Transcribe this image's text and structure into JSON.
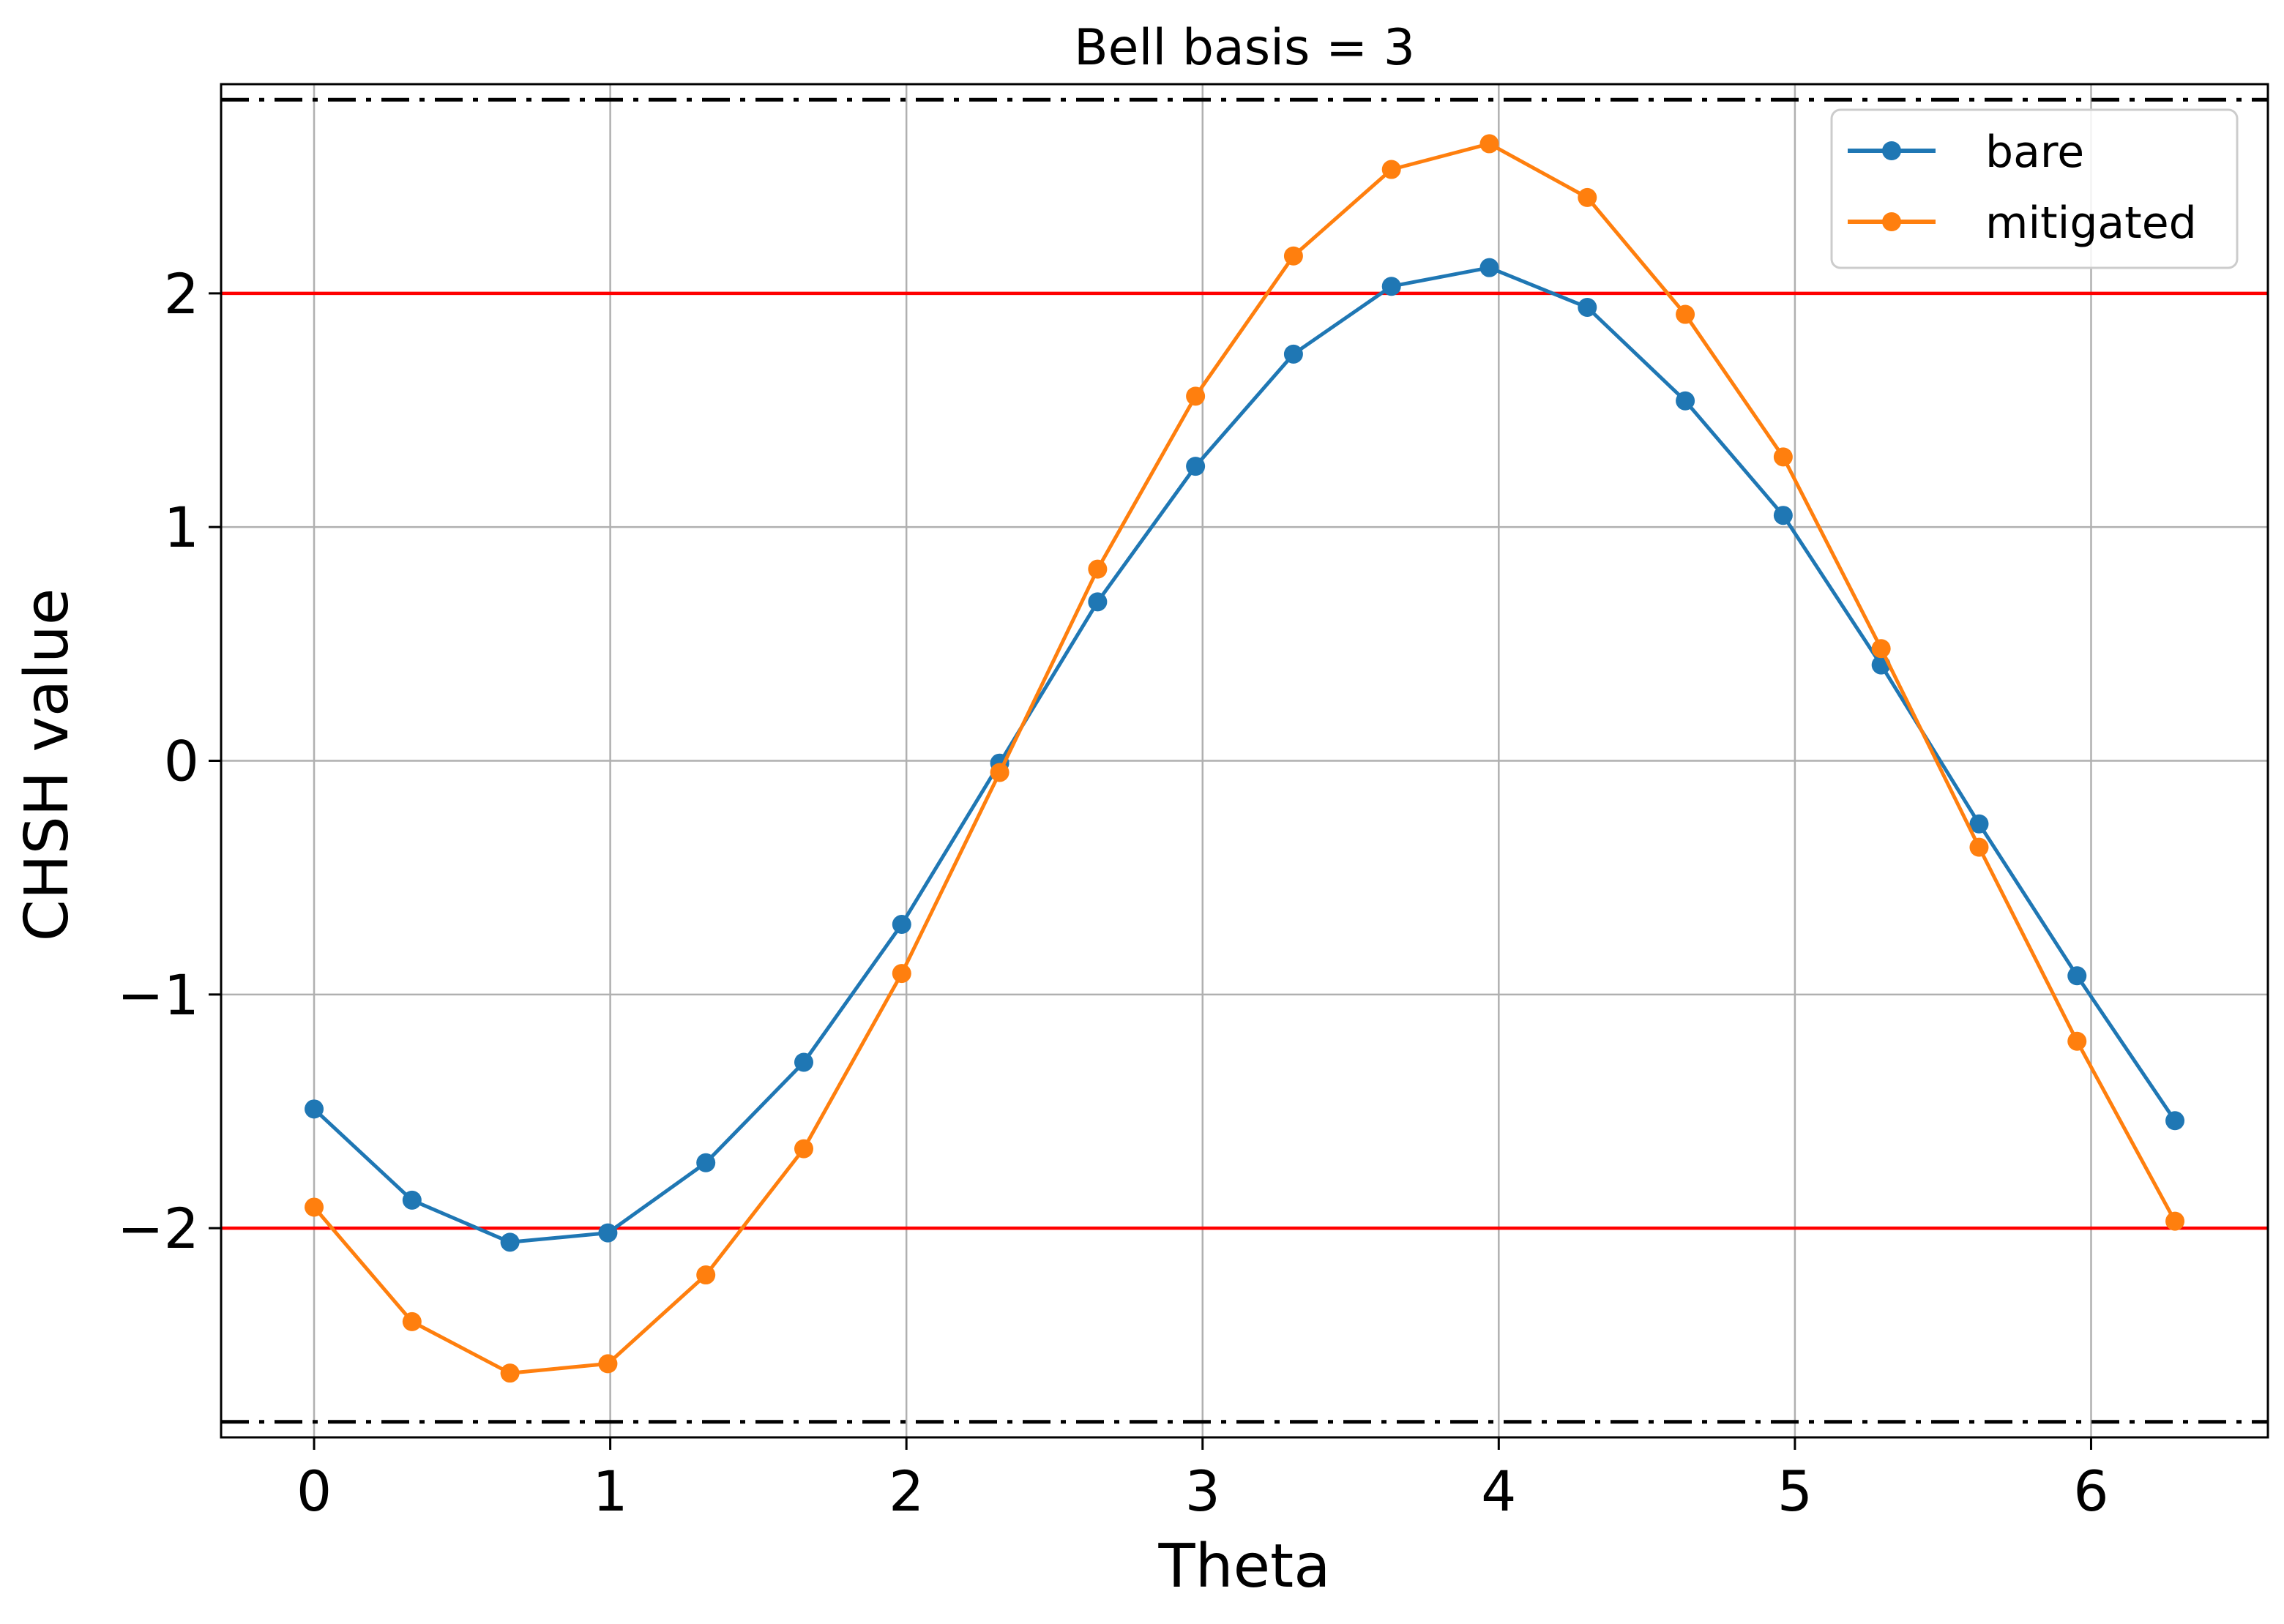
{
  "chart_data": {
    "type": "line",
    "title": "Bell basis = 3",
    "xlabel": "Theta",
    "ylabel": "CHSH value",
    "xlim": [
      -0.314,
      6.597
    ],
    "ylim": [
      -2.895,
      2.895
    ],
    "xticks": [
      0,
      1,
      2,
      3,
      4,
      5,
      6
    ],
    "yticks": [
      -2,
      -1,
      0,
      1,
      2
    ],
    "ytick_labels": [
      "−2",
      "−1",
      "0",
      "1",
      "2"
    ],
    "grid": true,
    "legend_position": "top-right",
    "x": [
      0,
      0.3307,
      0.6614,
      0.9921,
      1.3228,
      1.6535,
      1.9842,
      2.3149,
      2.6456,
      2.9762,
      3.3069,
      3.6376,
      3.9683,
      4.299,
      4.6297,
      4.9604,
      5.2911,
      5.6218,
      5.9525,
      6.2832
    ],
    "series": [
      {
        "name": "bare",
        "color": "#1f77b4",
        "values": [
          -1.49,
          -1.88,
          -2.06,
          -2.02,
          -1.72,
          -1.29,
          -0.7,
          -0.01,
          0.68,
          1.26,
          1.74,
          2.03,
          2.11,
          1.94,
          1.54,
          1.05,
          0.41,
          -0.27,
          -0.92,
          -1.54
        ]
      },
      {
        "name": "mitigated",
        "color": "#ff7f0e",
        "values": [
          -1.91,
          -2.4,
          -2.62,
          -2.58,
          -2.2,
          -1.66,
          -0.91,
          -0.05,
          0.82,
          1.56,
          2.16,
          2.53,
          2.64,
          2.41,
          1.91,
          1.3,
          0.48,
          -0.37,
          -1.2,
          -1.97
        ]
      }
    ],
    "reference_lines": [
      {
        "y": 2,
        "style": "solid",
        "color": "#ff0000"
      },
      {
        "y": -2,
        "style": "solid",
        "color": "#ff0000"
      },
      {
        "y": 2.8284,
        "style": "dashdot",
        "color": "#000000"
      },
      {
        "y": -2.8284,
        "style": "dashdot",
        "color": "#000000"
      }
    ]
  }
}
